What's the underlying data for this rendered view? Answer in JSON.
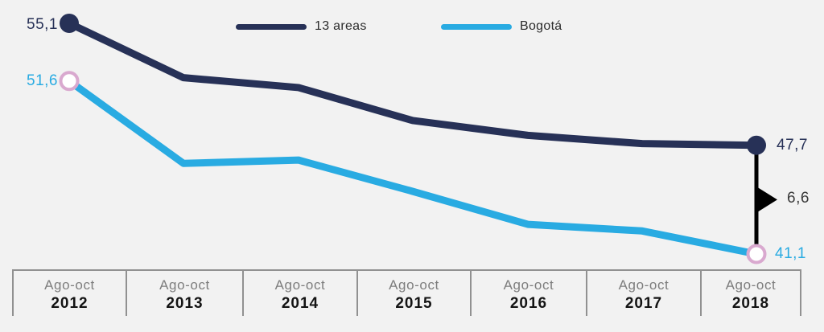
{
  "background_color": "#f2f2f2",
  "legend": {
    "items": [
      {
        "label": "13 areas",
        "color": "#273157"
      },
      {
        "label": "Bogotá",
        "color": "#29abe2"
      }
    ]
  },
  "annotations": {
    "start_13_areas": "55,1",
    "start_bogota": "51,6",
    "end_13_areas": "47,7",
    "end_bogota": "41,1",
    "gap_2018": "6,6"
  },
  "axis": {
    "cells": [
      {
        "period": "Ago-oct",
        "year": "2012"
      },
      {
        "period": "Ago-oct",
        "year": "2013"
      },
      {
        "period": "Ago-oct",
        "year": "2014"
      },
      {
        "period": "Ago-oct",
        "year": "2015"
      },
      {
        "period": "Ago-oct",
        "year": "2016"
      },
      {
        "period": "Ago-oct",
        "year": "2017"
      },
      {
        "period": "Ago-oct",
        "year": "2018"
      }
    ]
  },
  "chart_data": {
    "type": "line",
    "categories": [
      "Ago-oct 2012",
      "Ago-oct 2013",
      "Ago-oct 2014",
      "Ago-oct 2015",
      "Ago-oct 2016",
      "Ago-oct 2017",
      "Ago-oct 2018"
    ],
    "series": [
      {
        "name": "13 areas",
        "color": "#273157",
        "values": [
          55.1,
          51.8,
          51.2,
          49.2,
          48.3,
          47.8,
          47.7
        ],
        "endpoint_labels": {
          "first": "55,1",
          "last": "47,7"
        },
        "endpoint_marker": "filled-circle"
      },
      {
        "name": "Bogotá",
        "color": "#29abe2",
        "values": [
          51.6,
          46.6,
          46.8,
          44.9,
          42.9,
          42.5,
          41.1
        ],
        "endpoint_labels": {
          "first": "51,6",
          "last": "41,1"
        },
        "endpoint_marker": "open-circle",
        "marker_ring_color": "#d9a9cf"
      }
    ],
    "gap_annotation": {
      "x": "Ago-oct 2018",
      "value": 6.6,
      "label": "6,6",
      "style": "black-flag-connector"
    },
    "title": "",
    "xlabel": "",
    "ylabel": "",
    "grid": false,
    "legend_position": "top",
    "decimal_separator": ",",
    "approx_value_range": [
      41.1,
      55.1
    ]
  }
}
